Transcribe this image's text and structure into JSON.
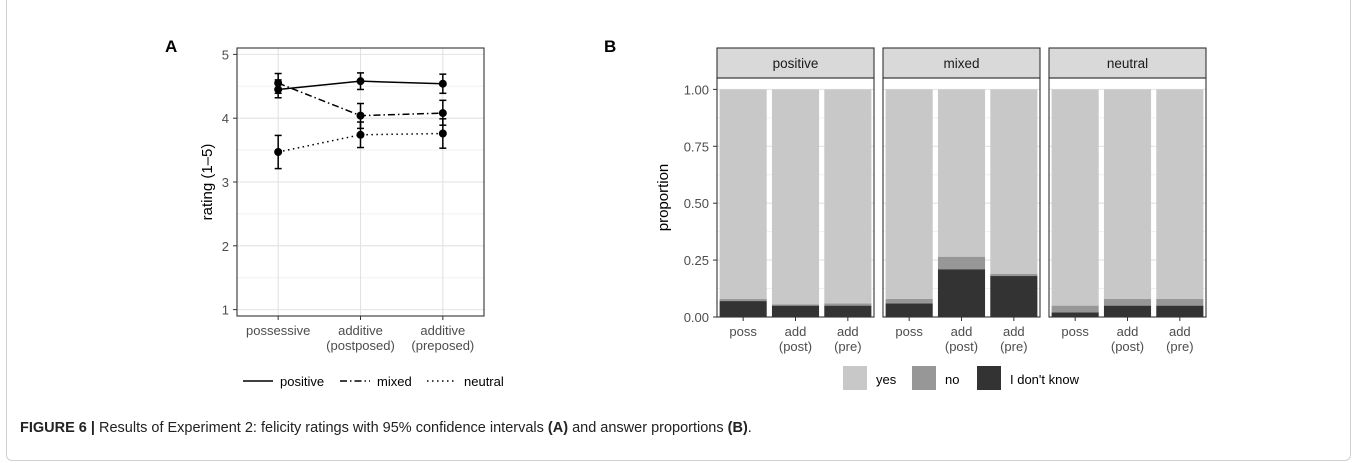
{
  "caption": {
    "label": "FIGURE 6 |",
    "text_before": "Results of Experiment 2: felicity ratings with 95% confidence intervals",
    "ref_a": "(A)",
    "text_middle": "and answer proportions",
    "ref_b": "(B)",
    "text_after": "."
  },
  "chart_data": [
    {
      "panel_label": "A",
      "type": "line",
      "title": "",
      "xlabel": "",
      "ylabel": "rating (1–5)",
      "ylim": [
        0.9,
        5.1
      ],
      "y_ticks": [
        "1",
        "2",
        "3",
        "4",
        "5"
      ],
      "grid": true,
      "legend_position": "bottom",
      "categories": [
        [
          "possessive"
        ],
        [
          "additive",
          "(postposed)"
        ],
        [
          "additive",
          "(preposed)"
        ]
      ],
      "series": [
        {
          "name": "positive",
          "dash": "solid",
          "values": [
            4.45,
            4.58,
            4.54
          ],
          "ci_low": [
            4.32,
            4.45,
            4.39
          ],
          "ci_high": [
            4.6,
            4.71,
            4.69
          ]
        },
        {
          "name": "mixed",
          "dash": "dotdash",
          "values": [
            4.55,
            4.04,
            4.08
          ],
          "ci_low": [
            4.39,
            3.84,
            3.89
          ],
          "ci_high": [
            4.7,
            4.23,
            4.28
          ]
        },
        {
          "name": "neutral",
          "dash": "dotted",
          "values": [
            3.47,
            3.74,
            3.76
          ],
          "ci_low": [
            3.21,
            3.54,
            3.53
          ],
          "ci_high": [
            3.73,
            3.94,
            3.99
          ]
        }
      ]
    },
    {
      "panel_label": "B",
      "type": "bar",
      "stacked": true,
      "title": "",
      "xlabel": "",
      "ylabel": "proportion",
      "ylim": [
        0,
        1.05
      ],
      "y_ticks": [
        "0.00",
        "0.25",
        "0.50",
        "0.75",
        "1.00"
      ],
      "grid": true,
      "legend_position": "bottom",
      "facets": [
        "positive",
        "mixed",
        "neutral"
      ],
      "categories": [
        [
          "poss"
        ],
        [
          "add",
          "(post)"
        ],
        [
          "add",
          "(pre)"
        ]
      ],
      "legend": [
        {
          "name": "yes",
          "color": "#c8c8c8"
        },
        {
          "name": "no",
          "color": "#979797"
        },
        {
          "name": "I don't know",
          "color": "#333333"
        }
      ],
      "series": [
        {
          "name": "I don't know",
          "values": [
            [
              0.07,
              0.05,
              0.05
            ],
            [
              0.06,
              0.21,
              0.18
            ],
            [
              0.02,
              0.05,
              0.05
            ]
          ]
        },
        {
          "name": "no",
          "values": [
            [
              0.01,
              0.005,
              0.01
            ],
            [
              0.02,
              0.055,
              0.01
            ],
            [
              0.03,
              0.03,
              0.03
            ]
          ]
        },
        {
          "name": "yes",
          "values": [
            [
              0.92,
              0.945,
              0.94
            ],
            [
              0.92,
              0.735,
              0.81
            ],
            [
              0.95,
              0.92,
              0.92
            ]
          ]
        }
      ]
    }
  ]
}
